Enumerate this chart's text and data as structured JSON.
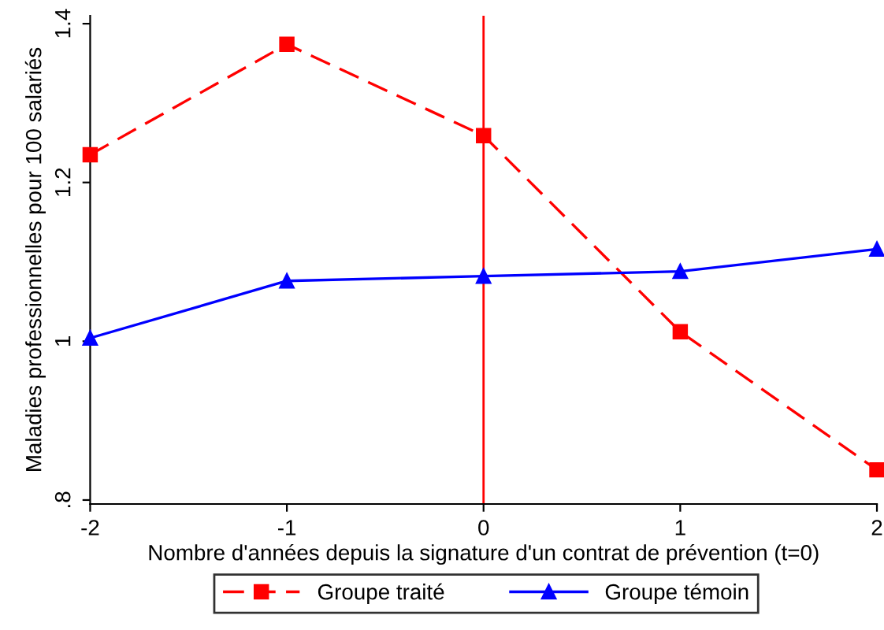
{
  "chart_data": {
    "type": "line",
    "xlabel": "Nombre d'années depuis la signature d'un contrat de prévention (t=0)",
    "ylabel": "Maladies professionnelles pour 100 salariés",
    "x": [
      -2,
      -1,
      0,
      1,
      2
    ],
    "series": [
      {
        "name": "Groupe traité",
        "color": "#ff0000",
        "marker": "square",
        "line_style": "dashed",
        "values": [
          1.235,
          1.374,
          1.259,
          1.012,
          0.838
        ]
      },
      {
        "name": "Groupe témoin",
        "color": "#0000ff",
        "marker": "triangle",
        "line_style": "solid",
        "values": [
          1.004,
          1.076,
          1.082,
          1.088,
          1.116
        ]
      }
    ],
    "xlim": [
      -2,
      2
    ],
    "xticks": [
      {
        "value": -2,
        "label": "-2"
      },
      {
        "value": -1,
        "label": "-1"
      },
      0,
      1,
      2
    ],
    "ylim": [
      0.795,
      1.41
    ],
    "yticks": [
      {
        "value": 0.8,
        "label": ".8"
      },
      1,
      {
        "value": 1.2,
        "label": "1.2"
      },
      {
        "value": 1.4,
        "label": "1.4"
      }
    ],
    "ref_lines": [
      {
        "axis": "x",
        "value": 0,
        "color": "#ff0000"
      }
    ],
    "grid": false,
    "legend": "bottom"
  }
}
